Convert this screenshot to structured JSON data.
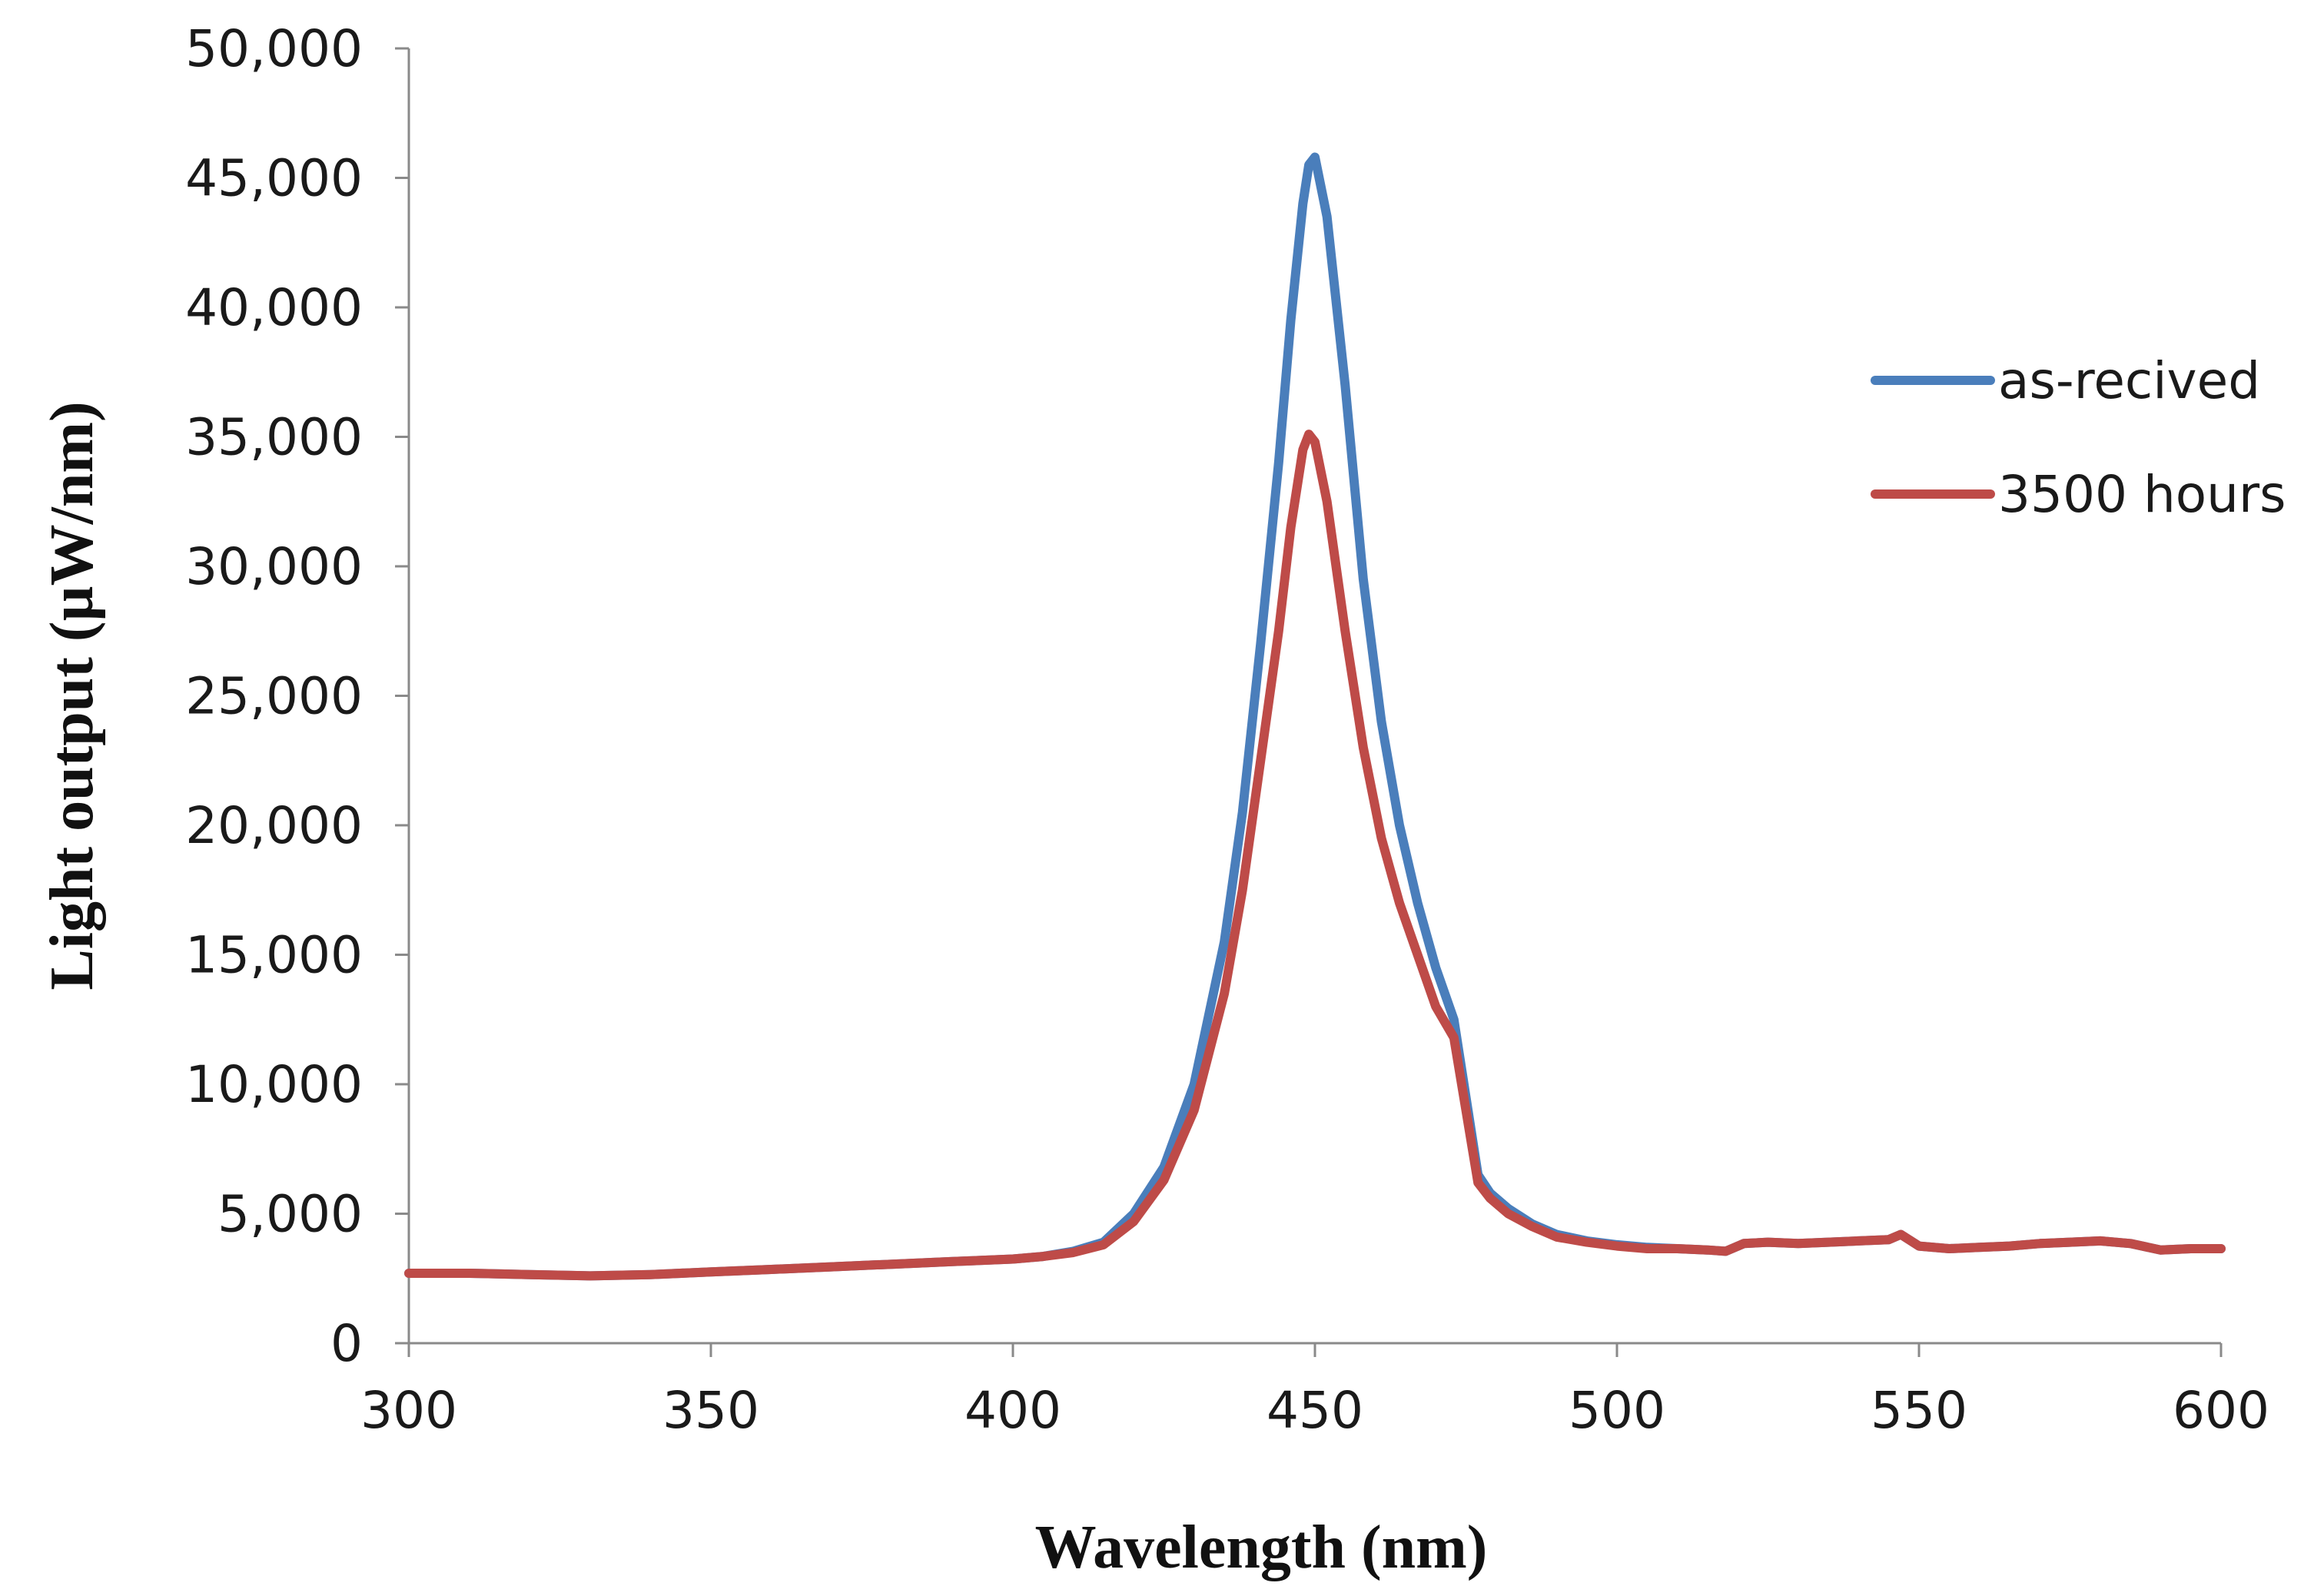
{
  "chart_data": {
    "type": "line",
    "title": "",
    "xlabel": "Wavelength (nm)",
    "ylabel": "Light output (µW/nm)",
    "xlim": [
      300,
      600
    ],
    "ylim": [
      0,
      50000
    ],
    "x_ticks": [
      300,
      350,
      400,
      450,
      500,
      550,
      600
    ],
    "y_ticks": [
      0,
      5000,
      10000,
      15000,
      20000,
      25000,
      30000,
      35000,
      40000,
      45000,
      50000
    ],
    "x_tick_labels": [
      "300",
      "350",
      "400",
      "450",
      "500",
      "550",
      "600"
    ],
    "y_tick_labels": [
      "0",
      "5,000",
      "10,000",
      "15,000",
      "20,000",
      "25,000",
      "30,000",
      "35,000",
      "40,000",
      "45,000",
      "50,000"
    ],
    "grid": false,
    "legend_position": "right",
    "series": [
      {
        "name": "as-recived",
        "color": "#4a7ebb",
        "x": [
          300,
          310,
          320,
          330,
          340,
          350,
          360,
          370,
          380,
          390,
          400,
          405,
          410,
          415,
          420,
          425,
          430,
          435,
          438,
          441,
          444,
          446,
          448,
          449,
          450,
          452,
          455,
          458,
          461,
          464,
          467,
          470,
          473,
          475,
          477,
          479,
          482,
          486,
          490,
          495,
          500,
          505,
          510,
          515,
          518,
          521,
          525,
          530,
          535,
          540,
          545,
          547,
          550,
          555,
          560,
          565,
          570,
          575,
          580,
          585,
          590,
          595,
          600
        ],
        "values": [
          2700,
          2700,
          2650,
          2600,
          2650,
          2750,
          2850,
          2950,
          3050,
          3150,
          3250,
          3350,
          3550,
          3900,
          5000,
          6800,
          10000,
          15500,
          20500,
          27000,
          34000,
          39500,
          44000,
          45500,
          45800,
          43500,
          37000,
          29500,
          24000,
          20000,
          17000,
          14500,
          12500,
          9500,
          6500,
          5800,
          5200,
          4600,
          4200,
          3950,
          3800,
          3700,
          3650,
          3600,
          3550,
          3850,
          3900,
          3850,
          3900,
          3950,
          4000,
          4200,
          3750,
          3650,
          3700,
          3750,
          3850,
          3900,
          3950,
          3850,
          3600,
          3650,
          3650
        ]
      },
      {
        "name": "3500 hours",
        "color": "#be4b48",
        "x": [
          300,
          310,
          320,
          330,
          340,
          350,
          360,
          370,
          380,
          390,
          400,
          405,
          410,
          415,
          420,
          425,
          430,
          435,
          438,
          441,
          444,
          446,
          448,
          449,
          450,
          452,
          455,
          458,
          461,
          464,
          467,
          470,
          473,
          475,
          477,
          479,
          482,
          486,
          490,
          495,
          500,
          505,
          510,
          515,
          518,
          521,
          525,
          530,
          535,
          540,
          545,
          547,
          550,
          555,
          560,
          565,
          570,
          575,
          580,
          585,
          590,
          595,
          600
        ],
        "values": [
          2700,
          2700,
          2650,
          2600,
          2650,
          2750,
          2850,
          2950,
          3050,
          3150,
          3250,
          3350,
          3500,
          3800,
          4700,
          6300,
          9000,
          13500,
          17500,
          22500,
          27500,
          31500,
          34500,
          35100,
          34800,
          32500,
          27500,
          23000,
          19500,
          17000,
          15000,
          13000,
          11800,
          9000,
          6200,
          5600,
          5000,
          4500,
          4100,
          3900,
          3750,
          3650,
          3650,
          3600,
          3550,
          3850,
          3900,
          3850,
          3900,
          3950,
          4000,
          4200,
          3750,
          3650,
          3700,
          3750,
          3850,
          3900,
          3950,
          3850,
          3600,
          3650,
          3650
        ]
      }
    ]
  }
}
